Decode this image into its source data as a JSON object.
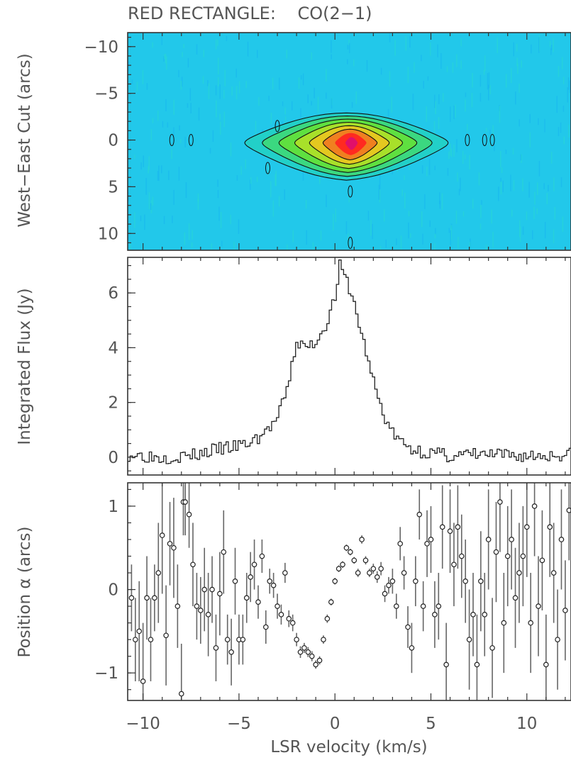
{
  "title": "RED RECTANGLE:    CO(2−1)",
  "chart_data": [
    {
      "type": "heatmap",
      "name": "pv-diagram",
      "ylabel": "West−East Cut (arcs)",
      "xlim": [
        -10.8,
        12.3
      ],
      "ylim": [
        -11.5,
        11.8
      ],
      "yinverted": true,
      "yticks": [
        -10,
        -5,
        0,
        5,
        10
      ],
      "ytick_labels": [
        "−10",
        "−5",
        "0",
        "5",
        "10"
      ],
      "background_color": "#22c8ea",
      "colormap": [
        "#1fb8ec",
        "#22d0c8",
        "#3bd880",
        "#5fe040",
        "#a8e02a",
        "#e4c820",
        "#f08020",
        "#ff2a20",
        "#e0106a"
      ],
      "contour_levels": [
        1,
        2,
        3,
        4,
        5
      ],
      "emission": {
        "center_velocity": 0.6,
        "center_offset": 0.3,
        "velocity_extent": [
          -4.6,
          6.0
        ],
        "offset_extent": [
          -2.6,
          3.8
        ],
        "peak_velocity": 0.9,
        "peak_offset": 0.4
      }
    },
    {
      "type": "line",
      "name": "integrated-flux",
      "step": true,
      "ylabel": "Integrated Flux (Jy)",
      "xlim": [
        -10.8,
        12.3
      ],
      "ylim": [
        -0.65,
        7.3
      ],
      "yticks": [
        0,
        2,
        4,
        6
      ],
      "ytick_labels": [
        "0",
        "2",
        "4",
        "6"
      ],
      "x": [
        -10.5,
        -9.0,
        -7.5,
        -6.0,
        -5.0,
        -4.5,
        -4.0,
        -3.5,
        -3.0,
        -2.5,
        -2.0,
        -1.5,
        -1.0,
        -0.5,
        0.0,
        0.25,
        0.5,
        0.75,
        1.0,
        1.5,
        2.0,
        2.5,
        3.0,
        3.5,
        4.0,
        5.0,
        6.0,
        7.5,
        9.0,
        10.5,
        12.0
      ],
      "values": [
        0.1,
        0.0,
        0.05,
        0.3,
        0.4,
        0.5,
        0.7,
        1.0,
        1.4,
        2.4,
        4.2,
        4.0,
        4.2,
        4.8,
        5.8,
        7.0,
        6.6,
        6.2,
        5.6,
        4.2,
        2.8,
        1.6,
        0.9,
        0.5,
        0.3,
        0.15,
        0.05,
        0.1,
        0.05,
        0.05,
        0.1
      ]
    },
    {
      "type": "scatter",
      "name": "position-alpha",
      "ylabel": "Position α (arcs)",
      "xlabel": "LSR velocity (km/s)",
      "xlim": [
        -10.8,
        12.3
      ],
      "ylim": [
        -1.33,
        1.28
      ],
      "yticks": [
        -1,
        0,
        1
      ],
      "ytick_labels": [
        "−1",
        "0",
        "1"
      ],
      "xticks": [
        -10,
        -5,
        0,
        5,
        10
      ],
      "xtick_labels": [
        "−10",
        "−5",
        "0",
        "5",
        "10"
      ],
      "points": [
        [
          -10.6,
          -0.1,
          0.4
        ],
        [
          -10.4,
          -0.6,
          0.5
        ],
        [
          -10.2,
          -0.5,
          0.6
        ],
        [
          -10.0,
          -1.1,
          0.7
        ],
        [
          -9.8,
          -0.1,
          0.5
        ],
        [
          -9.6,
          -0.6,
          0.5
        ],
        [
          -9.4,
          -0.1,
          0.4
        ],
        [
          -9.2,
          0.2,
          0.6
        ],
        [
          -9.0,
          0.65,
          0.7
        ],
        [
          -8.8,
          -0.55,
          0.6
        ],
        [
          -8.6,
          0.55,
          0.5
        ],
        [
          -8.4,
          0.5,
          0.6
        ],
        [
          -8.2,
          -0.2,
          0.5
        ],
        [
          -8.0,
          -1.25,
          0.6
        ],
        [
          -7.9,
          1.05,
          0.4
        ],
        [
          -7.8,
          1.05,
          0.4
        ],
        [
          -7.6,
          0.9,
          0.4
        ],
        [
          -7.4,
          0.3,
          0.5
        ],
        [
          -7.2,
          -0.2,
          0.4
        ],
        [
          -7.0,
          -0.25,
          0.4
        ],
        [
          -6.8,
          0.0,
          0.5
        ],
        [
          -6.6,
          -0.3,
          0.5
        ],
        [
          -6.4,
          0.0,
          0.4
        ],
        [
          -6.2,
          -0.7,
          0.4
        ],
        [
          -6.0,
          -0.05,
          0.5
        ],
        [
          -5.8,
          0.45,
          0.5
        ],
        [
          -5.6,
          -0.6,
          0.3
        ],
        [
          -5.4,
          -0.75,
          0.4
        ],
        [
          -5.2,
          0.1,
          0.4
        ],
        [
          -5.0,
          -0.6,
          0.3
        ],
        [
          -4.8,
          -0.6,
          0.3
        ],
        [
          -4.6,
          -0.1,
          0.3
        ],
        [
          -4.4,
          0.15,
          0.3
        ],
        [
          -4.2,
          0.3,
          0.3
        ],
        [
          -4.0,
          -0.15,
          0.2
        ],
        [
          -3.8,
          0.4,
          0.2
        ],
        [
          -3.6,
          -0.45,
          0.2
        ],
        [
          -3.4,
          0.1,
          0.15
        ],
        [
          -3.2,
          0.05,
          0.15
        ],
        [
          -3.0,
          -0.2,
          0.15
        ],
        [
          -2.8,
          -0.3,
          0.12
        ],
        [
          -2.6,
          0.2,
          0.12
        ],
        [
          -2.4,
          -0.35,
          0.1
        ],
        [
          -2.2,
          -0.4,
          0.1
        ],
        [
          -2.0,
          -0.6,
          0.08
        ],
        [
          -1.8,
          -0.75,
          0.07
        ],
        [
          -1.6,
          -0.7,
          0.06
        ],
        [
          -1.4,
          -0.75,
          0.06
        ],
        [
          -1.2,
          -0.8,
          0.06
        ],
        [
          -1.0,
          -0.9,
          0.05
        ],
        [
          -0.8,
          -0.85,
          0.05
        ],
        [
          -0.6,
          -0.6,
          0.05
        ],
        [
          -0.4,
          -0.35,
          0.05
        ],
        [
          -0.2,
          -0.15,
          0.04
        ],
        [
          0.0,
          0.1,
          0.04
        ],
        [
          0.2,
          0.25,
          0.04
        ],
        [
          0.4,
          0.3,
          0.04
        ],
        [
          0.6,
          0.5,
          0.04
        ],
        [
          0.8,
          0.45,
          0.04
        ],
        [
          1.0,
          0.35,
          0.04
        ],
        [
          1.2,
          0.2,
          0.05
        ],
        [
          1.4,
          0.6,
          0.05
        ],
        [
          1.6,
          0.35,
          0.05
        ],
        [
          1.8,
          0.2,
          0.05
        ],
        [
          2.0,
          0.25,
          0.06
        ],
        [
          2.2,
          0.15,
          0.07
        ],
        [
          2.4,
          0.25,
          0.08
        ],
        [
          2.6,
          -0.05,
          0.1
        ],
        [
          2.8,
          0.05,
          0.1
        ],
        [
          3.0,
          0.1,
          0.15
        ],
        [
          3.2,
          -0.2,
          0.15
        ],
        [
          3.4,
          0.55,
          0.2
        ],
        [
          3.6,
          0.2,
          0.2
        ],
        [
          3.8,
          -0.45,
          0.25
        ],
        [
          4.0,
          -0.7,
          0.3
        ],
        [
          4.2,
          0.1,
          0.3
        ],
        [
          4.4,
          0.9,
          0.3
        ],
        [
          4.6,
          -0.2,
          0.3
        ],
        [
          4.8,
          0.55,
          0.4
        ],
        [
          5.0,
          0.6,
          0.4
        ],
        [
          5.2,
          -0.3,
          0.4
        ],
        [
          5.4,
          -0.2,
          0.4
        ],
        [
          5.6,
          0.75,
          0.5
        ],
        [
          5.8,
          -0.9,
          0.5
        ],
        [
          6.0,
          0.7,
          0.5
        ],
        [
          6.2,
          0.3,
          0.5
        ],
        [
          6.4,
          0.75,
          0.5
        ],
        [
          6.6,
          0.4,
          0.5
        ],
        [
          6.8,
          0.1,
          0.5
        ],
        [
          7.0,
          -0.6,
          0.6
        ],
        [
          7.2,
          -0.3,
          0.5
        ],
        [
          7.4,
          -0.9,
          0.6
        ],
        [
          7.6,
          0.1,
          0.6
        ],
        [
          7.8,
          -0.3,
          0.5
        ],
        [
          8.0,
          0.6,
          0.6
        ],
        [
          8.2,
          -0.7,
          0.6
        ],
        [
          8.4,
          0.45,
          0.6
        ],
        [
          8.6,
          1.05,
          0.6
        ],
        [
          8.8,
          -0.4,
          0.6
        ],
        [
          9.0,
          0.4,
          0.6
        ],
        [
          9.2,
          0.6,
          0.6
        ],
        [
          9.4,
          -0.1,
          0.6
        ],
        [
          9.6,
          0.2,
          0.6
        ],
        [
          9.8,
          0.4,
          0.6
        ],
        [
          10.0,
          0.75,
          0.6
        ],
        [
          10.2,
          -0.4,
          0.6
        ],
        [
          10.4,
          1.0,
          0.6
        ],
        [
          10.6,
          -0.2,
          0.6
        ],
        [
          10.8,
          0.35,
          0.6
        ],
        [
          11.0,
          -0.9,
          0.6
        ],
        [
          11.2,
          0.75,
          0.6
        ],
        [
          11.4,
          0.2,
          0.6
        ],
        [
          11.6,
          -0.6,
          0.6
        ],
        [
          11.8,
          0.6,
          0.6
        ],
        [
          12.0,
          -0.25,
          0.6
        ],
        [
          12.2,
          0.95,
          0.6
        ]
      ]
    }
  ]
}
